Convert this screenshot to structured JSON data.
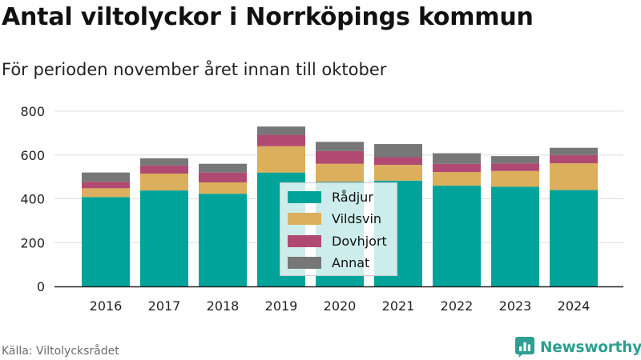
{
  "title": "Antal viltolyckor i Norrköpings kommun",
  "subtitle": "För perioden november året innan till oktober",
  "source": "Källa: Viltolycksrådet",
  "brand": {
    "name": "Newsworthy",
    "icon": "newsworthy-logo-icon",
    "color": "#2e9f92"
  },
  "chart_data": {
    "type": "bar",
    "stacked": true,
    "categories": [
      "2016",
      "2017",
      "2018",
      "2019",
      "2020",
      "2021",
      "2022",
      "2023",
      "2024"
    ],
    "series": [
      {
        "name": "Rådjur",
        "color": "#00a39a",
        "values": [
          408,
          438,
          423,
          520,
          478,
          483,
          460,
          455,
          440
        ]
      },
      {
        "name": "Vildsvin",
        "color": "#dcaf5c",
        "values": [
          40,
          77,
          52,
          120,
          82,
          72,
          62,
          72,
          122
        ]
      },
      {
        "name": "Dovhjort",
        "color": "#b04a72",
        "values": [
          30,
          37,
          45,
          52,
          58,
          35,
          38,
          35,
          38
        ]
      },
      {
        "name": "Annat",
        "color": "#777777",
        "values": [
          42,
          33,
          40,
          38,
          42,
          60,
          48,
          33,
          33
        ]
      }
    ],
    "yticks": [
      0,
      200,
      400,
      600,
      800
    ],
    "ylim": [
      0,
      800
    ],
    "grid": true,
    "legend_position": "center"
  }
}
